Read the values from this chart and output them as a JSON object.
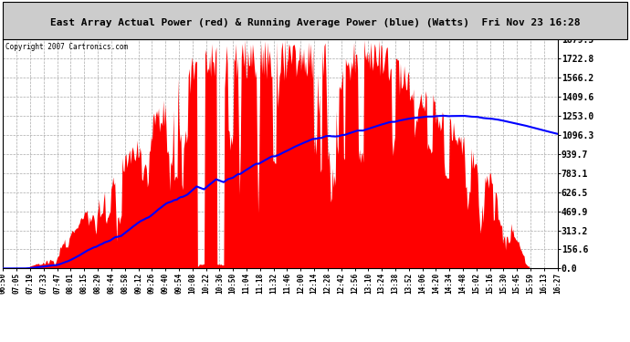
{
  "title": "East Array Actual Power (red) & Running Average Power (blue) (Watts)  Fri Nov 23 16:28",
  "copyright": "Copyright 2007 Cartronics.com",
  "background_color": "#ffffff",
  "title_bg": "#cccccc",
  "actual_color": "#ff0000",
  "avg_color": "#0000ff",
  "grid_color": "#aaaaaa",
  "ymax": 1879.5,
  "ytick_values": [
    0.0,
    156.6,
    313.2,
    469.9,
    626.5,
    783.1,
    939.7,
    1096.3,
    1253.0,
    1409.6,
    1566.2,
    1722.8,
    1879.5
  ],
  "ytick_labels": [
    "0.0",
    "156.6",
    "313.2",
    "469.9",
    "626.5",
    "783.1",
    "939.7",
    "1096.3",
    "1253.0",
    "1409.6",
    "1566.2",
    "1722.8",
    "1879.5"
  ],
  "x_labels": [
    "06:50",
    "07:05",
    "07:19",
    "07:33",
    "07:47",
    "08:01",
    "08:15",
    "08:29",
    "08:44",
    "08:58",
    "09:12",
    "09:26",
    "09:40",
    "09:54",
    "10:08",
    "10:22",
    "10:36",
    "10:50",
    "11:04",
    "11:18",
    "11:32",
    "11:46",
    "12:00",
    "12:14",
    "12:28",
    "12:42",
    "12:56",
    "13:10",
    "13:24",
    "13:38",
    "13:52",
    "14:06",
    "14:20",
    "14:34",
    "14:48",
    "15:02",
    "15:16",
    "15:30",
    "15:45",
    "15:59",
    "16:13",
    "16:27"
  ]
}
